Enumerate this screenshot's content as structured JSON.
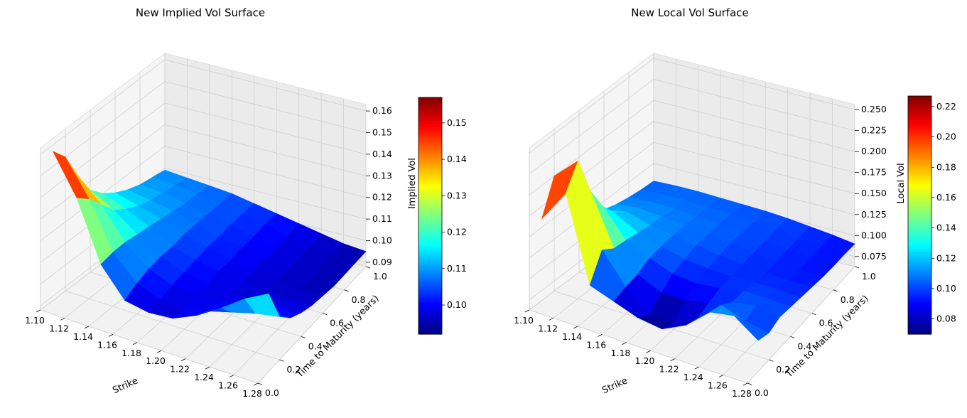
{
  "chart_data": [
    {
      "type": "surface3d",
      "title": "New Implied Vol Surface",
      "xlabel": "Strike",
      "ylabel": "Time to Maturity (years)",
      "zlabel": "Implied Vol",
      "x_ticks": [
        "1.10",
        "1.12",
        "1.14",
        "1.16",
        "1.18",
        "1.20",
        "1.22",
        "1.24",
        "1.26",
        "1.28"
      ],
      "y_ticks": [
        "0.0",
        "0.2",
        "0.4",
        "0.6",
        "0.8",
        "1.0"
      ],
      "z_ticks": [
        "0.09",
        "0.10",
        "0.11",
        "0.12",
        "0.13",
        "0.14",
        "0.15",
        "0.16"
      ],
      "colorbar_ticks": [
        "0.10",
        "0.11",
        "0.12",
        "0.13",
        "0.14",
        "0.15"
      ],
      "colormap": "jet",
      "colorbar_range": [
        0.092,
        0.157
      ],
      "zlim": [
        0.088,
        0.163
      ],
      "xlim": [
        1.1,
        1.28
      ],
      "ylim": [
        0.0,
        1.0
      ],
      "grid": true,
      "strike": [
        1.1,
        1.12,
        1.14,
        1.16,
        1.18,
        1.2,
        1.22,
        1.24,
        1.26,
        1.28
      ],
      "maturity": [
        0.1,
        0.2,
        0.3,
        0.4,
        0.5,
        0.6,
        0.7,
        0.8,
        0.9,
        1.0
      ],
      "z_note": "rows = maturity, cols = strike",
      "z": [
        [
          0.157,
          0.139,
          0.112,
          0.099,
          0.097,
          0.098,
          0.103,
          0.11,
          0.118,
          0.124
        ],
        [
          0.15,
          0.134,
          0.113,
          0.102,
          0.098,
          0.098,
          0.1,
          0.103,
          0.106,
          0.108
        ],
        [
          0.137,
          0.127,
          0.113,
          0.104,
          0.1,
          0.099,
          0.099,
          0.1,
          0.101,
          0.102
        ],
        [
          0.126,
          0.12,
          0.112,
          0.105,
          0.101,
          0.099,
          0.098,
          0.098,
          0.099,
          0.099
        ],
        [
          0.12,
          0.116,
          0.111,
          0.105,
          0.102,
          0.1,
          0.098,
          0.097,
          0.097,
          0.097
        ],
        [
          0.116,
          0.113,
          0.11,
          0.106,
          0.103,
          0.1,
          0.098,
          0.097,
          0.096,
          0.096
        ],
        [
          0.113,
          0.111,
          0.109,
          0.106,
          0.103,
          0.101,
          0.099,
          0.097,
          0.096,
          0.095
        ],
        [
          0.111,
          0.11,
          0.108,
          0.106,
          0.104,
          0.101,
          0.099,
          0.097,
          0.096,
          0.095
        ],
        [
          0.11,
          0.109,
          0.108,
          0.106,
          0.104,
          0.102,
          0.099,
          0.097,
          0.096,
          0.095
        ],
        [
          0.109,
          0.108,
          0.107,
          0.106,
          0.104,
          0.102,
          0.1,
          0.098,
          0.096,
          0.095
        ]
      ]
    },
    {
      "type": "surface3d",
      "title": "New Local Vol Surface",
      "xlabel": "Strike",
      "ylabel": "Time to Maturity (years)",
      "zlabel": "Local Vol",
      "x_ticks": [
        "1.10",
        "1.12",
        "1.14",
        "1.16",
        "1.18",
        "1.20",
        "1.22",
        "1.24",
        "1.26",
        "1.28"
      ],
      "y_ticks": [
        "0.0",
        "0.2",
        "0.4",
        "0.6",
        "0.8",
        "1.0"
      ],
      "z_ticks": [
        "0.075",
        "0.100",
        "0.125",
        "0.150",
        "0.175",
        "0.200",
        "0.225",
        "0.250"
      ],
      "colorbar_ticks": [
        "0.08",
        "0.10",
        "0.12",
        "0.14",
        "0.16",
        "0.18",
        "0.20",
        "0.22"
      ],
      "colormap": "jet",
      "colorbar_range": [
        0.07,
        0.227
      ],
      "zlim": [
        0.063,
        0.256
      ],
      "xlim": [
        1.1,
        1.28
      ],
      "ylim": [
        0.0,
        1.0
      ],
      "grid": true,
      "strike": [
        1.1,
        1.12,
        1.14,
        1.16,
        1.18,
        1.2,
        1.22,
        1.24,
        1.26,
        1.28
      ],
      "maturity": [
        0.1,
        0.2,
        0.3,
        0.4,
        0.5,
        0.6,
        0.7,
        0.8,
        0.9,
        1.0
      ],
      "z_note": "rows = maturity, cols = strike",
      "z": [
        [
          0.16,
          0.2,
          0.1,
          0.09,
          0.08,
          0.076,
          0.09,
          0.115,
          0.12,
          0.1
        ],
        [
          0.2,
          0.227,
          0.13,
          0.095,
          0.072,
          0.07,
          0.085,
          0.11,
          0.1,
          0.095
        ],
        [
          0.17,
          0.18,
          0.12,
          0.098,
          0.085,
          0.085,
          0.09,
          0.1,
          0.105,
          0.1
        ],
        [
          0.14,
          0.15,
          0.118,
          0.105,
          0.095,
          0.092,
          0.095,
          0.1,
          0.1,
          0.098
        ],
        [
          0.125,
          0.13,
          0.115,
          0.107,
          0.1,
          0.097,
          0.096,
          0.097,
          0.097,
          0.096
        ],
        [
          0.115,
          0.12,
          0.112,
          0.108,
          0.104,
          0.1,
          0.097,
          0.095,
          0.094,
          0.094
        ],
        [
          0.11,
          0.113,
          0.11,
          0.108,
          0.105,
          0.102,
          0.098,
          0.095,
          0.093,
          0.092
        ],
        [
          0.107,
          0.109,
          0.108,
          0.107,
          0.105,
          0.102,
          0.099,
          0.096,
          0.093,
          0.091
        ],
        [
          0.105,
          0.106,
          0.106,
          0.105,
          0.104,
          0.102,
          0.1,
          0.097,
          0.094,
          0.091
        ],
        [
          0.104,
          0.105,
          0.105,
          0.104,
          0.103,
          0.102,
          0.1,
          0.097,
          0.094,
          0.09
        ]
      ]
    }
  ]
}
